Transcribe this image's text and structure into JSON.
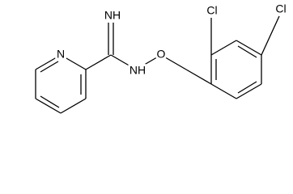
{
  "atom_labels": [
    "N",
    "NH",
    "NH",
    "O",
    "Cl",
    "Cl"
  ]
}
